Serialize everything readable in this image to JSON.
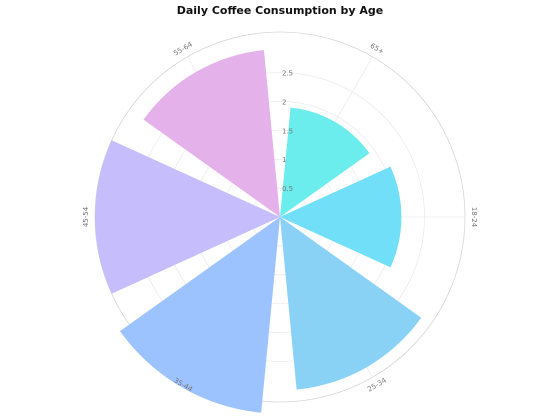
{
  "chart_data": {
    "type": "bar",
    "subtype": "polar",
    "title": "Daily Coffee Consumption by Age",
    "categories": [
      "18-24",
      "25-34",
      "35-44",
      "45-54",
      "55-64",
      "65+"
    ],
    "theta_positions_deg": [
      90,
      150,
      210,
      270,
      330,
      30
    ],
    "values": [
      2.1,
      3.0,
      3.4,
      3.2,
      2.9,
      1.9
    ],
    "colors": [
      "#71dff7",
      "#8ad1f6",
      "#9cc3fe",
      "#c6bdfd",
      "#e4b1eb",
      "#6ceded"
    ],
    "radial_ticks": [
      0.5,
      1,
      1.5,
      2,
      2.5
    ],
    "radial_tick_labels": [
      "0.5",
      "1",
      "1.5",
      "2",
      "2.5"
    ],
    "r_range": [
      0,
      3.2
    ],
    "grid": true
  }
}
